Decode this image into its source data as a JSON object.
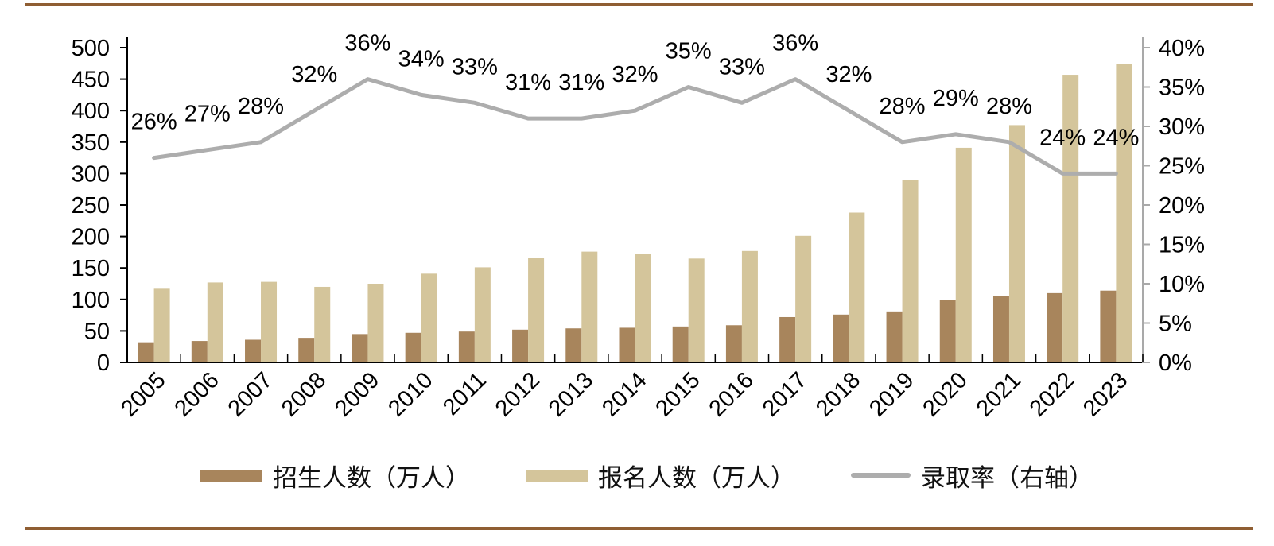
{
  "page": {
    "border_color": "#8F5E33"
  },
  "chart_data": {
    "type": "combo_bar_line",
    "categories": [
      "2005",
      "2006",
      "2007",
      "2008",
      "2009",
      "2010",
      "2011",
      "2012",
      "2013",
      "2014",
      "2015",
      "2016",
      "2017",
      "2018",
      "2019",
      "2020",
      "2021",
      "2022",
      "2023"
    ],
    "series": [
      {
        "key": "enrollment",
        "name": "招生人数（万人）",
        "type": "bar",
        "axis": "left",
        "color": "#A8855C",
        "values": [
          32,
          34,
          36,
          39,
          45,
          47,
          49,
          52,
          54,
          55,
          57,
          59,
          72,
          76,
          81,
          99,
          105,
          110,
          114
        ]
      },
      {
        "key": "applicants",
        "name": "报名人数（万人）",
        "type": "bar",
        "axis": "left",
        "color": "#D4C59B",
        "values": [
          117,
          127,
          128,
          120,
          125,
          141,
          151,
          166,
          176,
          172,
          165,
          177,
          201,
          238,
          290,
          341,
          377,
          457,
          474
        ]
      },
      {
        "key": "admission-rate",
        "name": "录取率（右轴）",
        "type": "line",
        "axis": "right",
        "color": "#ADADAD",
        "values": [
          26,
          27,
          28,
          32,
          36,
          34,
          33,
          31,
          31,
          32,
          35,
          33,
          36,
          32,
          28,
          29,
          28,
          24,
          24
        ],
        "point_labels": [
          "26%",
          "27%",
          "28%",
          "32%",
          "36%",
          "34%",
          "33%",
          "31%",
          "31%",
          "32%",
          "35%",
          "33%",
          "36%",
          "32%",
          "28%",
          "29%",
          "28%",
          "24%",
          "24%"
        ]
      }
    ],
    "left_axis": {
      "min": 0,
      "max": 500,
      "step": 50,
      "tick_labels": [
        "0",
        "50",
        "100",
        "150",
        "200",
        "250",
        "300",
        "350",
        "400",
        "450",
        "500"
      ]
    },
    "right_axis": {
      "min": 0,
      "max": 40,
      "step": 5,
      "tick_labels": [
        "0%",
        "5%",
        "10%",
        "15%",
        "20%",
        "25%",
        "30%",
        "35%",
        "40%"
      ]
    },
    "grid": false,
    "legend": {
      "position": "bottom",
      "items": [
        {
          "key": "enrollment",
          "label": "招生人数（万人）",
          "swatch": "bar",
          "color": "#A8855C"
        },
        {
          "key": "applicants",
          "label": "报名人数（万人）",
          "swatch": "bar",
          "color": "#D4C59B"
        },
        {
          "key": "admission-rate",
          "label": "录取率（右轴）",
          "swatch": "line",
          "color": "#ADADAD"
        }
      ]
    }
  }
}
